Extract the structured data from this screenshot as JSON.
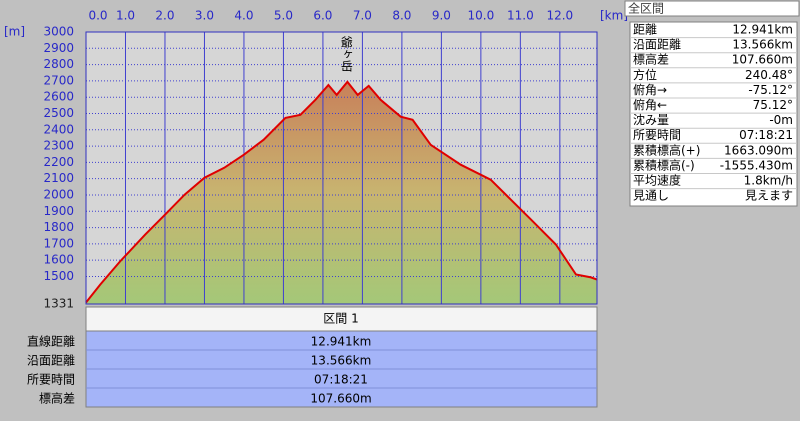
{
  "chart_data": {
    "type": "area",
    "x_axis_label": "[km]",
    "y_axis_label": "[m]",
    "peak_label": "爺ヶ岳",
    "x": [
      0,
      0.36,
      0.86,
      1.5,
      2.0,
      2.5,
      3.0,
      3.5,
      4.0,
      4.5,
      5.05,
      5.43,
      5.81,
      6.14,
      6.35,
      6.62,
      6.88,
      7.16,
      7.46,
      7.97,
      8.27,
      8.73,
      9.49,
      10.25,
      10.76,
      11.27,
      11.9,
      12.41,
      12.79,
      12.941
    ],
    "series": [
      {
        "color": "#e00000",
        "values": [
          1340,
          1450,
          1592,
          1757,
          1879,
          2002,
          2106,
          2167,
          2247,
          2339,
          2473,
          2492,
          2584,
          2675,
          2614,
          2694,
          2614,
          2669,
          2584,
          2480,
          2461,
          2308,
          2186,
          2094,
          1971,
          1849,
          1696,
          1512,
          1494,
          1481
        ]
      }
    ],
    "xlim": [
      0,
      12.941
    ],
    "xticks": [
      {
        "value": 0,
        "label": "0.0"
      },
      {
        "value": 1,
        "label": "1.0"
      },
      {
        "value": 2,
        "label": "2.0"
      },
      {
        "value": 3,
        "label": "3.0"
      },
      {
        "value": 4,
        "label": "4.0"
      },
      {
        "value": 5,
        "label": "5.0"
      },
      {
        "value": 6,
        "label": "6.0"
      },
      {
        "value": 7,
        "label": "7.0"
      },
      {
        "value": 8,
        "label": "8.0"
      },
      {
        "value": 9,
        "label": "9.0"
      },
      {
        "value": 10,
        "label": "10.0"
      },
      {
        "value": 11,
        "label": "11.0"
      },
      {
        "value": 12,
        "label": "12.0"
      }
    ],
    "ylim": [
      1331,
      3000
    ],
    "yticks": [
      1331,
      1500,
      1600,
      1700,
      1800,
      1900,
      2000,
      2100,
      2200,
      2300,
      2400,
      2500,
      2600,
      2700,
      2800,
      2900,
      3000
    ],
    "grid": true
  },
  "summary_panel": {
    "title": "全区間",
    "rows": [
      [
        "距離",
        "12.941km"
      ],
      [
        "沿面距離",
        "13.566km"
      ],
      [
        "標高差",
        "107.660m"
      ],
      [
        "方位",
        "240.48°"
      ],
      [
        "俯角→",
        "-75.12°"
      ],
      [
        "俯角←",
        "75.12°"
      ],
      [
        "沈み量",
        "-0m"
      ],
      [
        "所要時間",
        "07:18:21"
      ],
      [
        "累積標高(+)",
        "1663.090m"
      ],
      [
        "累積標高(-)",
        "-1555.430m"
      ],
      [
        "平均速度",
        "1.8km/h"
      ],
      [
        "見通し",
        "見えます"
      ]
    ]
  },
  "section_table": {
    "header": "区間 1",
    "rows": [
      [
        "直線距離",
        "12.941km"
      ],
      [
        "沿面距離",
        "13.566km"
      ],
      [
        "所要時間",
        "07:18:21"
      ],
      [
        "標高差",
        "107.660m"
      ]
    ]
  }
}
